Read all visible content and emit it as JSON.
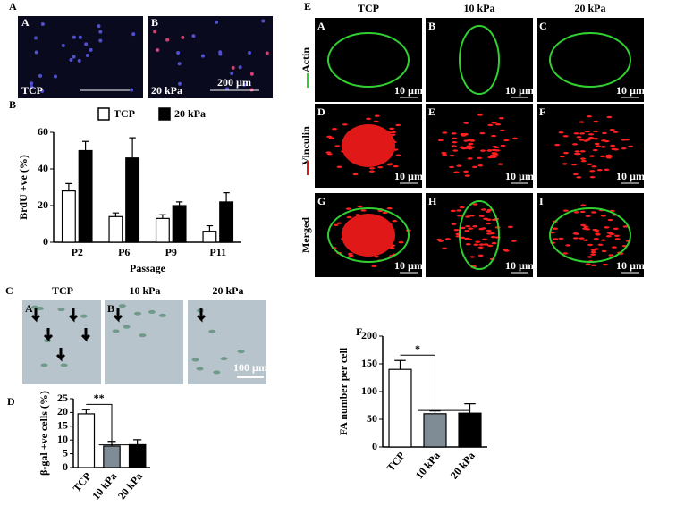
{
  "panel_a": {
    "label": "A",
    "images": [
      {
        "letter": "A",
        "caption": "TCP"
      },
      {
        "letter": "B",
        "caption": "20 kPa",
        "scale": "200 µm"
      }
    ]
  },
  "panel_c": {
    "label": "C",
    "headers": [
      "TCP",
      "10 kPa",
      "20 kPa"
    ],
    "letters": [
      "A",
      "B"
    ],
    "scale": "100 µm"
  },
  "panel_e": {
    "label": "E",
    "headers": [
      "TCP",
      "10 kPa",
      "20 kPa"
    ],
    "rows": [
      "Actin",
      "Vinculin",
      "Merged"
    ],
    "letters": [
      "A",
      "B",
      "C",
      "D",
      "E",
      "F",
      "G",
      "H",
      "I"
    ],
    "scale": "10 µm"
  },
  "chart_data": [
    {
      "type": "bar",
      "panel_label": "B",
      "x_label": "Passage",
      "y_label": "BrdU +ve (%)",
      "categories": [
        "P2",
        "P6",
        "P9",
        "P11"
      ],
      "series": [
        {
          "name": "TCP",
          "color": "#ffffff",
          "values": [
            28,
            14,
            13,
            6
          ],
          "errors": [
            4,
            2,
            2,
            3
          ]
        },
        {
          "name": "20 kPa",
          "color": "#000000",
          "values": [
            50,
            46,
            20,
            22
          ],
          "errors": [
            5,
            11,
            2,
            5
          ]
        }
      ],
      "ylim": [
        0,
        60
      ],
      "yticks": [
        0,
        20,
        40,
        60
      ],
      "legend": "top"
    },
    {
      "type": "bar",
      "panel_label": "D",
      "y_label": "β-gal +ve cells (%)",
      "annotation": "**",
      "categories": [
        "TCP",
        "10 kPa",
        "20 kPa"
      ],
      "values": [
        19.5,
        7.8,
        8.3
      ],
      "errors": [
        1.5,
        1.7,
        1.8
      ],
      "colors": [
        "#ffffff",
        "#7f8c96",
        "#000000"
      ],
      "ylim": [
        0,
        25
      ],
      "yticks": [
        0,
        5,
        10,
        15,
        20,
        25
      ]
    },
    {
      "type": "bar",
      "panel_label": "F",
      "y_label": "FA number per cell",
      "annotation": "*",
      "categories": [
        "TCP",
        "10 kPa",
        "20 kPa"
      ],
      "values": [
        140,
        60,
        61
      ],
      "errors": [
        16,
        5,
        17
      ],
      "colors": [
        "#ffffff",
        "#7f8c96",
        "#000000"
      ],
      "ylim": [
        0,
        200
      ],
      "yticks": [
        0,
        50,
        100,
        150,
        200
      ]
    }
  ]
}
